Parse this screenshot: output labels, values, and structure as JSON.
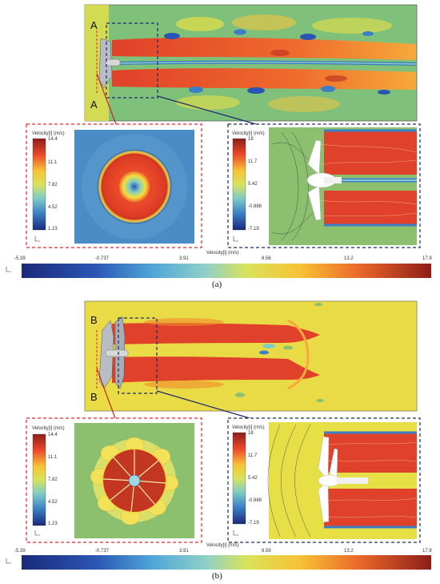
{
  "colors": {
    "dash_red": "#e0272a",
    "dash_blue": "#1b2a6b",
    "field_green": "#8cc06e",
    "field_yellow": "#e6df46",
    "jet_red": "#e0412a"
  },
  "panel_a": {
    "section_label": "A",
    "section_label_bottom": "A",
    "caption": "(a)",
    "left_cb": {
      "title": "Velocity[i] (m/s)",
      "ticks": [
        "14.4",
        "11.1",
        "7.82",
        "4.52",
        "1.23"
      ]
    },
    "right_cb": {
      "title": "Velocity[i] (m/s)",
      "ticks": [
        "18",
        "11.7",
        "5.42",
        "-0.888",
        "-7.19"
      ]
    },
    "main_cb": {
      "title": "Velocity[i] (m/s)",
      "ticks": [
        "-5.39",
        "-0.737",
        "3.91",
        "8.56",
        "13.2",
        "17.9"
      ]
    }
  },
  "panel_b": {
    "section_label": "B",
    "section_label_bottom": "B",
    "caption": "(b)",
    "left_cb": {
      "title": "Velocity[i] (m/s)",
      "ticks": [
        "14.4",
        "11.1",
        "7.82",
        "4.52",
        "1.23"
      ]
    },
    "right_cb": {
      "title": "Velocity[i] (m/s)",
      "ticks": [
        "18",
        "11.7",
        "5.42",
        "-0.888",
        "-7.19"
      ]
    },
    "main_cb": {
      "title": "Velocity[i] (m/s)",
      "ticks": [
        "-5.39",
        "-0.737",
        "3.91",
        "8.56",
        "13.2",
        "17.9"
      ]
    }
  }
}
